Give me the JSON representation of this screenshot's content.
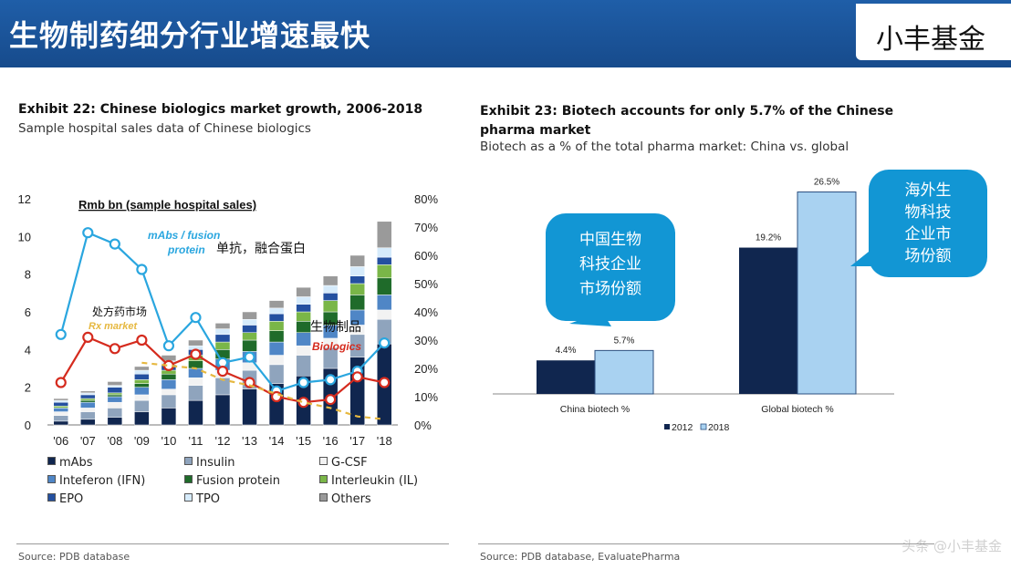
{
  "header": {
    "title": "生物制药细分行业增速最快",
    "brand": "小丰基金"
  },
  "colors": {
    "header_blue": "#1a55a0",
    "dark_navy": "#10264f",
    "light_blue": "#a9d2f1",
    "line_blue": "#2aa6df",
    "line_red": "#d52b1e",
    "dash_orange": "#e6b840",
    "callout_blue": "#1296d4"
  },
  "left": {
    "title": "Exhibit 22: Chinese biologics market growth, 2006-2018",
    "subtitle": "Sample hospital sales data of Chinese biologics",
    "source": "Source: PDB database",
    "legend": [
      {
        "label": "mAbs",
        "color": "#10264f"
      },
      {
        "label": "Insulin",
        "color": "#8fa4bd"
      },
      {
        "label": "G-CSF",
        "color": "#f2f2f2"
      },
      {
        "label": "Inteferon (IFN)",
        "color": "#4f86c6"
      },
      {
        "label": "Fusion protein",
        "color": "#1f6b2a"
      },
      {
        "label": "Interleukin (IL)",
        "color": "#7ab648"
      },
      {
        "label": "EPO",
        "color": "#2450a0"
      },
      {
        "label": "TPO",
        "color": "#d6ebfb"
      },
      {
        "label": "Others",
        "color": "#9a9a9a"
      }
    ]
  },
  "right": {
    "title": "Exhibit 23: Biotech accounts for only 5.7% of the Chinese pharma market",
    "subtitle": "Biotech as a % of the total pharma market: China vs. global",
    "source": "Source: PDB database, EvaluatePharma",
    "callout_china": [
      "中国生物",
      "科技企业",
      "市场份额"
    ],
    "callout_global": [
      "海外生",
      "物科技",
      "企业市",
      "场份额"
    ]
  },
  "watermark": "头条 @小丰基金",
  "chart_data": [
    {
      "type": "bar",
      "stacked": true,
      "title": "Exhibit 22: Chinese biologics market growth, 2006-2018",
      "ylabel": "Rmb bn (sample hospital sales)",
      "categories": [
        "'06",
        "'07",
        "'08",
        "'09",
        "'10",
        "'11",
        "'12",
        "'13",
        "'14",
        "'15",
        "'16",
        "'17",
        "'18"
      ],
      "ylim": [
        0,
        12
      ],
      "y_ticks": [
        "0",
        "2",
        "4",
        "6",
        "8",
        "10",
        "12"
      ],
      "y2lim": [
        0,
        80
      ],
      "y2_ticks": [
        "0%",
        "10%",
        "20%",
        "30%",
        "40%",
        "50%",
        "60%",
        "70%",
        "80%"
      ],
      "series": [
        {
          "name": "mAbs",
          "values": [
            0.2,
            0.3,
            0.4,
            0.7,
            0.9,
            1.3,
            1.6,
            1.9,
            2.2,
            2.6,
            3.0,
            3.6,
            4.3
          ]
        },
        {
          "name": "Insulin",
          "values": [
            0.3,
            0.4,
            0.5,
            0.6,
            0.7,
            0.8,
            0.9,
            1.0,
            1.0,
            1.1,
            1.1,
            1.2,
            1.3
          ]
        },
        {
          "name": "G-CSF",
          "values": [
            0.2,
            0.2,
            0.3,
            0.3,
            0.3,
            0.4,
            0.4,
            0.4,
            0.5,
            0.5,
            0.5,
            0.5,
            0.5
          ]
        },
        {
          "name": "Inteferon (IFN)",
          "values": [
            0.2,
            0.3,
            0.3,
            0.4,
            0.5,
            0.5,
            0.6,
            0.6,
            0.7,
            0.7,
            0.7,
            0.8,
            0.8
          ]
        },
        {
          "name": "Fusion protein",
          "values": [
            0.0,
            0.1,
            0.1,
            0.2,
            0.3,
            0.4,
            0.5,
            0.6,
            0.6,
            0.6,
            0.7,
            0.8,
            0.9
          ]
        },
        {
          "name": "Interleukin (IL)",
          "values": [
            0.1,
            0.1,
            0.1,
            0.2,
            0.2,
            0.3,
            0.4,
            0.4,
            0.5,
            0.5,
            0.6,
            0.6,
            0.7
          ]
        },
        {
          "name": "EPO",
          "values": [
            0.2,
            0.2,
            0.3,
            0.3,
            0.3,
            0.3,
            0.4,
            0.4,
            0.4,
            0.4,
            0.4,
            0.4,
            0.4
          ]
        },
        {
          "name": "TPO",
          "values": [
            0.1,
            0.1,
            0.1,
            0.2,
            0.2,
            0.2,
            0.3,
            0.3,
            0.3,
            0.4,
            0.4,
            0.5,
            0.5
          ]
        },
        {
          "name": "Others",
          "values": [
            0.1,
            0.1,
            0.2,
            0.2,
            0.3,
            0.3,
            0.3,
            0.4,
            0.4,
            0.5,
            0.5,
            0.6,
            1.4
          ]
        }
      ],
      "lines": [
        {
          "name": "mAbs / fusion protein",
          "label_cn": "单抗，融合蛋白",
          "axis": "right",
          "values": [
            32,
            68,
            64,
            55,
            28,
            38,
            22,
            24,
            12,
            15,
            16,
            19,
            29
          ]
        },
        {
          "name": "Biologics",
          "label_cn": "生物制品",
          "axis": "right",
          "values": [
            15,
            31,
            27,
            30,
            21,
            25,
            19,
            15,
            10,
            8,
            9,
            17,
            15
          ]
        },
        {
          "name": "Rx market",
          "label_cn": "处方药市场",
          "axis": "right",
          "dashed": true,
          "values": [
            null,
            null,
            null,
            22,
            null,
            20,
            16,
            14,
            11,
            8,
            6,
            3,
            2
          ]
        }
      ]
    },
    {
      "type": "bar",
      "title": "Exhibit 23: Biotech accounts for only 5.7% of the Chinese pharma market",
      "categories": [
        "China biotech %",
        "Global biotech %"
      ],
      "series": [
        {
          "name": "2012",
          "values": [
            4.4,
            19.2
          ],
          "labels": [
            "4.4%",
            "19.2%"
          ]
        },
        {
          "name": "2018",
          "values": [
            5.7,
            26.5
          ],
          "labels": [
            "5.7%",
            "26.5%"
          ]
        }
      ]
    }
  ]
}
